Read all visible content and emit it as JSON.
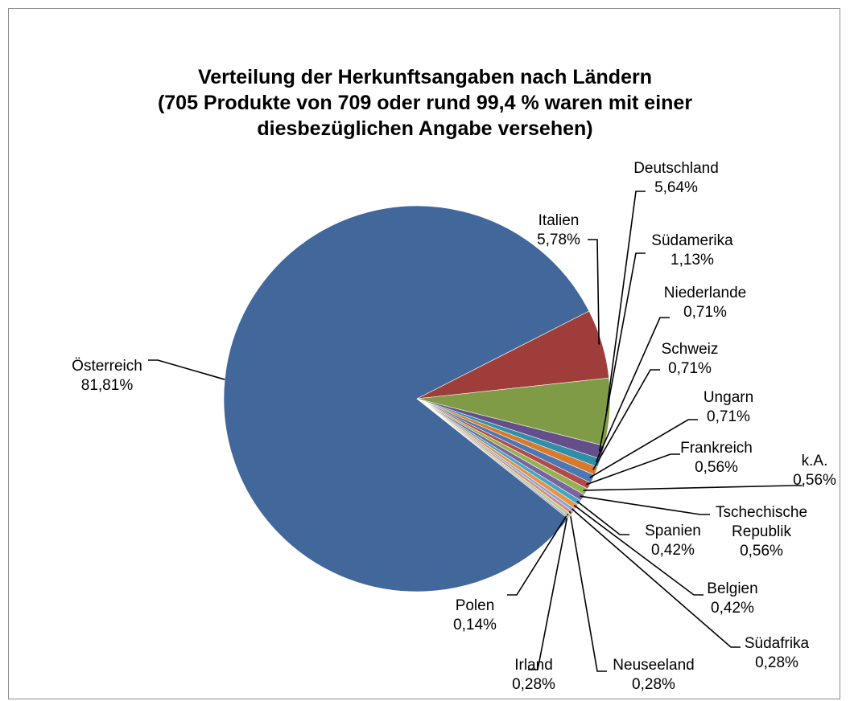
{
  "chart_data": {
    "type": "pie",
    "title": [
      "Verteilung der Herkunftsangaben nach Ländern",
      "(705 Produkte von 709 oder rund 99,4 %  waren mit einer",
      "diesbezüglichen Angabe versehen)"
    ],
    "categories": [
      "Österreich",
      "Italien",
      "Deutschland",
      "Südamerika",
      "Niederlande",
      "Schweiz",
      "Ungarn",
      "Frankreich",
      "k.A.",
      "Tschechische Republik",
      "Spanien",
      "Belgien",
      "Südafrika",
      "Neuseeland",
      "Irland",
      "Polen"
    ],
    "values": [
      81.81,
      5.78,
      5.64,
      1.13,
      0.71,
      0.71,
      0.71,
      0.56,
      0.56,
      0.56,
      0.42,
      0.42,
      0.28,
      0.28,
      0.28,
      0.14
    ],
    "value_labels": [
      "81,81%",
      "5,78%",
      "5,64%",
      "1,13%",
      "0,71%",
      "0,71%",
      "0,71%",
      "0,56%",
      "0,56%",
      "0,56%",
      "0,42%",
      "0,42%",
      "0,28%",
      "0,28%",
      "0,28%",
      "0,14%"
    ],
    "colors": [
      "#41679b",
      "#9e3d3a",
      "#7f9b46",
      "#654f8b",
      "#2f8ea8",
      "#d8792b",
      "#4a78b3",
      "#b24b48",
      "#93b255",
      "#7a64a0",
      "#46a5c0",
      "#e69342",
      "#8aa6d0",
      "#d08a88",
      "#b8cc8f",
      "#a99ac0"
    ]
  }
}
